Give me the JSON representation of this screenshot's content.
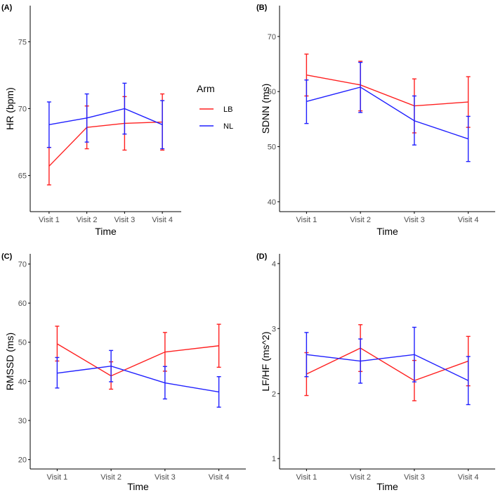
{
  "colors": {
    "LB": "#ff2020",
    "NL": "#2020ff",
    "axis": "#000000",
    "tick_text": "#4d4d4d"
  },
  "legend": {
    "title": "Arm",
    "items": [
      {
        "key": "LB",
        "label": "LB",
        "color": "#ff2020"
      },
      {
        "key": "NL",
        "label": "NL",
        "color": "#2020ff"
      }
    ]
  },
  "chart_data": [
    {
      "panel": "(A)",
      "type": "line",
      "xlabel": "Time",
      "ylabel": "HR (bpm)",
      "categories": [
        "Visit 1",
        "Visit 2",
        "Visit 3",
        "Visit 4"
      ],
      "ylim": [
        62.3,
        77.7
      ],
      "yticks": [
        65,
        70,
        75
      ],
      "series": [
        {
          "name": "LB",
          "values": [
            65.7,
            68.6,
            68.9,
            69.0
          ],
          "lower": [
            64.3,
            67.0,
            66.9,
            66.9
          ],
          "upper": [
            67.1,
            70.2,
            70.9,
            71.1
          ]
        },
        {
          "name": "NL",
          "values": [
            68.8,
            69.3,
            70.0,
            68.8
          ],
          "lower": [
            67.1,
            67.5,
            68.1,
            67.0
          ],
          "upper": [
            70.5,
            71.1,
            71.9,
            70.6
          ]
        }
      ]
    },
    {
      "panel": "(B)",
      "type": "line",
      "xlabel": "Time",
      "ylabel": "SDNN (ms)",
      "categories": [
        "Visit 1",
        "Visit 2",
        "Visit 3",
        "Visit 4"
      ],
      "ylim": [
        38.2,
        75.6
      ],
      "yticks": [
        40,
        50,
        60,
        70
      ],
      "series": [
        {
          "name": "LB",
          "values": [
            63.0,
            61.2,
            57.4,
            58.1
          ],
          "lower": [
            59.2,
            56.5,
            52.5,
            53.5
          ],
          "upper": [
            66.8,
            65.5,
            62.3,
            62.7
          ]
        },
        {
          "name": "NL",
          "values": [
            58.2,
            60.8,
            54.7,
            51.4
          ],
          "lower": [
            54.2,
            56.2,
            50.3,
            47.3
          ],
          "upper": [
            62.1,
            65.3,
            59.2,
            55.5
          ]
        }
      ]
    },
    {
      "panel": "(C)",
      "type": "line",
      "xlabel": "Time",
      "ylabel": "RMSSD (ms)",
      "categories": [
        "Visit 1",
        "Visit 2",
        "Visit 3",
        "Visit 4"
      ],
      "ylim": [
        17.6,
        72.6
      ],
      "yticks": [
        20,
        30,
        40,
        50,
        60,
        70
      ],
      "series": [
        {
          "name": "LB",
          "values": [
            49.6,
            41.4,
            47.5,
            49.1
          ],
          "lower": [
            45.2,
            38.0,
            42.6,
            43.6
          ],
          "upper": [
            54.1,
            45.0,
            52.5,
            54.6
          ]
        },
        {
          "name": "NL",
          "values": [
            42.1,
            43.9,
            39.6,
            37.3
          ],
          "lower": [
            38.3,
            39.9,
            35.5,
            33.4
          ],
          "upper": [
            46.1,
            47.9,
            43.8,
            41.2
          ]
        }
      ]
    },
    {
      "panel": "(D)",
      "type": "line",
      "xlabel": "Time",
      "ylabel": "LF/HF (ms^2)",
      "categories": [
        "Visit 1",
        "Visit 2",
        "Visit 3",
        "Visit 4"
      ],
      "ylim": [
        0.84,
        4.15
      ],
      "yticks": [
        1,
        2,
        3,
        4
      ],
      "series": [
        {
          "name": "LB",
          "values": [
            2.3,
            2.7,
            2.2,
            2.5
          ],
          "lower": [
            1.97,
            2.34,
            1.89,
            2.12
          ],
          "upper": [
            2.63,
            3.06,
            2.51,
            2.88
          ]
        },
        {
          "name": "NL",
          "values": [
            2.6,
            2.5,
            2.6,
            2.2
          ],
          "lower": [
            2.26,
            2.16,
            2.18,
            1.83
          ],
          "upper": [
            2.94,
            2.84,
            3.02,
            2.57
          ]
        }
      ]
    }
  ]
}
